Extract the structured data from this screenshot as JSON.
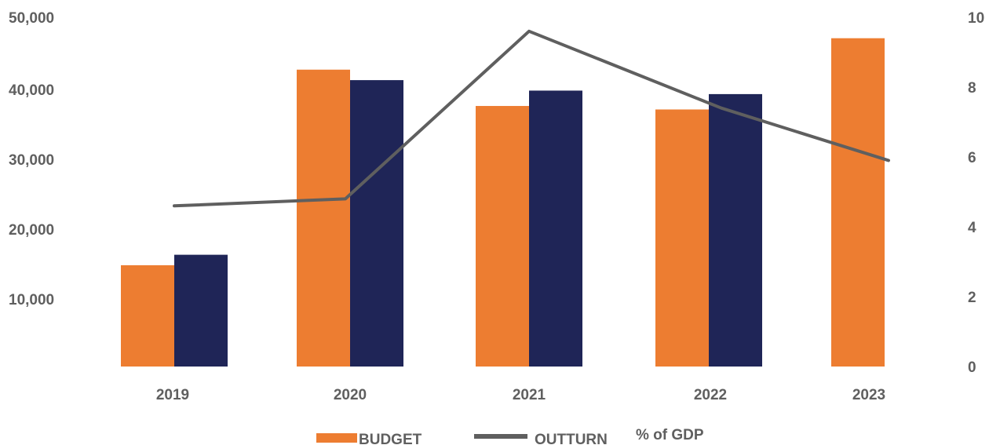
{
  "chart_data": {
    "type": "bar",
    "categories": [
      "2019",
      "2020",
      "2021",
      "2022",
      "2023"
    ],
    "series": [
      {
        "name": "BUDGET",
        "type": "bar",
        "axis": "left",
        "color": "#ED7D31",
        "values": [
          14500,
          42500,
          37300,
          36800,
          47000
        ]
      },
      {
        "name": "OUTTURN",
        "type": "bar",
        "axis": "left",
        "color": "#1F2557",
        "values": [
          16000,
          41000,
          39500,
          39000,
          null
        ]
      },
      {
        "name": "% of GDP",
        "type": "line",
        "axis": "right",
        "color": "#5F5F5F",
        "values": [
          4.6,
          4.8,
          9.6,
          7.4,
          5.9
        ]
      }
    ],
    "y_left": {
      "ticks": [
        "50,000",
        "40,000",
        "30,000",
        "20,000",
        "10,000"
      ],
      "range": [
        0,
        50000
      ]
    },
    "y_right": {
      "ticks": [
        "10",
        "8",
        "6",
        "4",
        "2",
        "0"
      ],
      "range": [
        0,
        10
      ]
    },
    "legend": {
      "position": "bottom",
      "labels": [
        "BUDGET",
        "OUTTURN",
        "% of GDP"
      ]
    }
  }
}
